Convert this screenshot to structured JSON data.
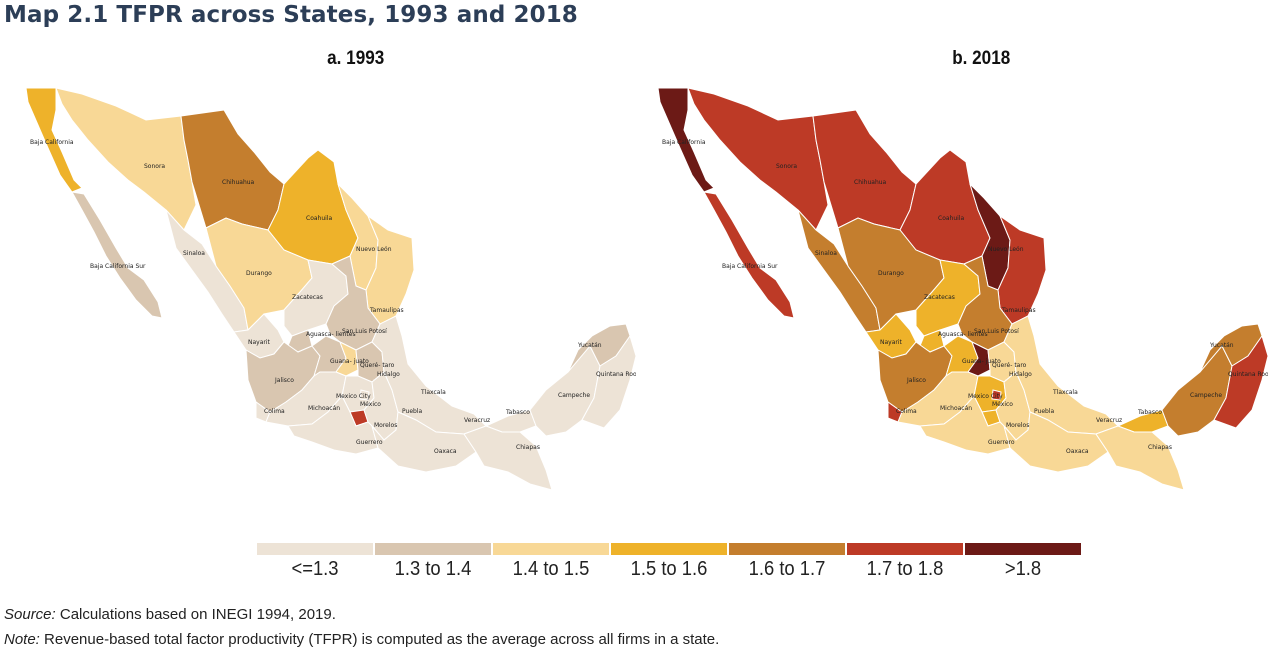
{
  "title": "Map 2.1 TFPR across States, 1993 and 2018",
  "maps": [
    {
      "label": "a. 1993"
    },
    {
      "label": "b. 2018"
    }
  ],
  "legend": [
    {
      "label": "<=1.3",
      "color": "#ede3d6"
    },
    {
      "label": "1.3 to 1.4",
      "color": "#d9c6b0"
    },
    {
      "label": "1.4 to 1.5",
      "color": "#f8d896"
    },
    {
      "label": "1.5 to 1.6",
      "color": "#eeb22a"
    },
    {
      "label": "1.6 to 1.7",
      "color": "#c47e2e"
    },
    {
      "label": "1.7 to 1.8",
      "color": "#bd3a26"
    },
    {
      "label": ">1.8",
      "color": "#6c1a16"
    }
  ],
  "state_names": {
    "baja_california": "Baja California",
    "sonora": "Sonora",
    "chihuahua": "Chihuahua",
    "coahuila": "Coahuila",
    "nuevo_leon": "Nuevo León",
    "tamaulipas": "Tamaulipas",
    "baja_california_sur": "Baja California Sur",
    "sinaloa": "Sinaloa",
    "durango": "Durango",
    "zacatecas": "Zacatecas",
    "nayarit": "Nayarit",
    "aguascalientes": "Aguasca- lientes",
    "san_luis_potosi": "San Luis Potosí",
    "jalisco": "Jalisco",
    "guanajuato": "Guana- juato",
    "queretaro": "Queré- taro",
    "hidalgo": "Hidalgo",
    "colima": "Colima",
    "michoacan": "Michoacán",
    "mexico_city": "Mexico City",
    "mexico": "México",
    "tlaxcala": "Tlaxcala",
    "puebla": "Puebla",
    "morelos": "Morelos",
    "guerrero": "Guerrero",
    "oaxaca": "Oaxaca",
    "veracruz": "Veracruz",
    "tabasco": "Tabasco",
    "chiapas": "Chiapas",
    "campeche": "Campeche",
    "yucatan": "Yucatán",
    "quintana_roo": "Quintana Roo"
  },
  "map_data": {
    "1993": {
      "baja_california": "1.5 to 1.6",
      "sonora": "1.4 to 1.5",
      "chihuahua": "1.6 to 1.7",
      "coahuila": "1.5 to 1.6",
      "nuevo_leon": "1.4 to 1.5",
      "tamaulipas": "1.4 to 1.5",
      "baja_california_sur": "1.3 to 1.4",
      "sinaloa": "<=1.3",
      "durango": "1.4 to 1.5",
      "zacatecas": "<=1.3",
      "nayarit": "<=1.3",
      "aguascalientes": "1.3 to 1.4",
      "san_luis_potosi": "1.3 to 1.4",
      "jalisco": "1.3 to 1.4",
      "guanajuato": "1.3 to 1.4",
      "queretaro": "1.4 to 1.5",
      "hidalgo": "1.3 to 1.4",
      "colima": "<=1.3",
      "michoacan": "<=1.3",
      "mexico_city": "<=1.3",
      "mexico": "<=1.3",
      "tlaxcala": "<=1.3",
      "puebla": "<=1.3",
      "morelos": "1.7 to 1.8",
      "guerrero": "<=1.3",
      "oaxaca": "<=1.3",
      "veracruz": "<=1.3",
      "tabasco": "<=1.3",
      "chiapas": "<=1.3",
      "campeche": "<=1.3",
      "yucatan": "1.3 to 1.4",
      "quintana_roo": "<=1.3"
    },
    "2018": {
      "baja_california": ">1.8",
      "sonora": "1.7 to 1.8",
      "chihuahua": "1.7 to 1.8",
      "coahuila": "1.7 to 1.8",
      "nuevo_leon": ">1.8",
      "tamaulipas": "1.7 to 1.8",
      "baja_california_sur": "1.7 to 1.8",
      "sinaloa": "1.6 to 1.7",
      "durango": "1.6 to 1.7",
      "zacatecas": "1.5 to 1.6",
      "nayarit": "1.5 to 1.6",
      "aguascalientes": "1.5 to 1.6",
      "san_luis_potosi": "1.6 to 1.7",
      "jalisco": "1.6 to 1.7",
      "guanajuato": "1.5 to 1.6",
      "queretaro": ">1.8",
      "hidalgo": "1.4 to 1.5",
      "colima": "1.7 to 1.8",
      "michoacan": "1.4 to 1.5",
      "mexico_city": "1.7 to 1.8",
      "mexico": "1.5 to 1.6",
      "tlaxcala": "1.4 to 1.5",
      "puebla": "1.4 to 1.5",
      "morelos": "1.5 to 1.6",
      "guerrero": "1.4 to 1.5",
      "oaxaca": "1.4 to 1.5",
      "veracruz": "1.4 to 1.5",
      "tabasco": "1.5 to 1.6",
      "chiapas": "1.4 to 1.5",
      "campeche": "1.6 to 1.7",
      "yucatan": "1.6 to 1.7",
      "quintana_roo": "1.7 to 1.8"
    }
  },
  "footer": {
    "source_label": "Source:",
    "source_text": " Calculations based on INEGI 1994, 2019.",
    "note_label": "Note:",
    "note_text": " Revenue-based total factor productivity (TFPR) is computed as the average across all firms in a state."
  }
}
